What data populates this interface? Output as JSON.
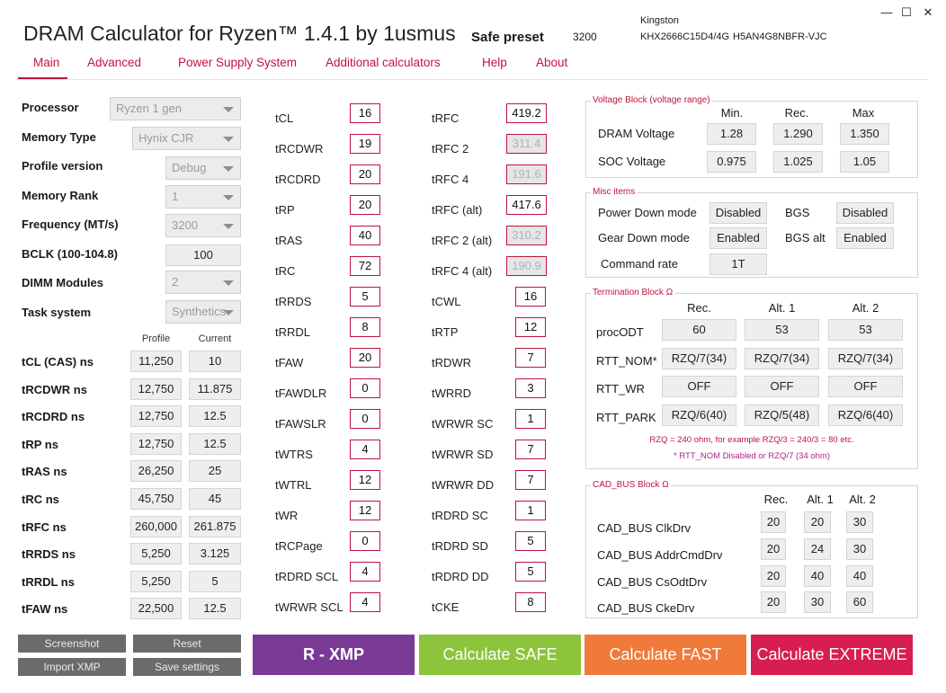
{
  "app": {
    "title": "DRAM Calculator for Ryzen™ 1.4.1 by 1usmus",
    "preset_label": "Safe preset",
    "preset_value": "3200",
    "vendor": "Kingston",
    "part_number": "KHX2666C15D4/4G",
    "part_number_2": "H5AN4G8NBFR-VJC",
    "window_controls": {
      "minimize": "—",
      "maximize": "☐",
      "close": "✕"
    }
  },
  "tabs": [
    "Main",
    "Advanced",
    "Power Supply System",
    "Additional calculators",
    "Help",
    "About"
  ],
  "settings": [
    {
      "label": "Processor",
      "value": "Ryzen 1 gen"
    },
    {
      "label": "Memory Type",
      "value": "Hynix CJR"
    },
    {
      "label": "Profile version",
      "value": "Debug"
    },
    {
      "label": "Memory Rank",
      "value": "1"
    },
    {
      "label": "Frequency (MT/s)",
      "value": "3200"
    },
    {
      "label": "BCLK (100-104.8)",
      "value": "100"
    },
    {
      "label": "DIMM Modules",
      "value": "2"
    },
    {
      "label": "Task system",
      "value": "Synthetics"
    }
  ],
  "ns_table": {
    "headers": [
      "Profile",
      "Current"
    ],
    "rows": [
      {
        "label": "tCL (CAS) ns",
        "profile": "11,250",
        "current": "10"
      },
      {
        "label": "tRCDWR ns",
        "profile": "12,750",
        "current": "11.875"
      },
      {
        "label": "tRCDRD ns",
        "profile": "12,750",
        "current": "12.5"
      },
      {
        "label": "tRP ns",
        "profile": "12,750",
        "current": "12.5"
      },
      {
        "label": "tRAS ns",
        "profile": "26,250",
        "current": "25"
      },
      {
        "label": "tRC ns",
        "profile": "45,750",
        "current": "45"
      },
      {
        "label": "tRFC ns",
        "profile": "260,000",
        "current": "261.875"
      },
      {
        "label": "tRRDS ns",
        "profile": "5,250",
        "current": "3.125"
      },
      {
        "label": "tRRDL ns",
        "profile": "5,250",
        "current": "5"
      },
      {
        "label": "tFAW ns",
        "profile": "22,500",
        "current": "12.5"
      }
    ]
  },
  "timings_col1": [
    {
      "label": "tCL",
      "value": "16"
    },
    {
      "label": "tRCDWR",
      "value": "19"
    },
    {
      "label": "tRCDRD",
      "value": "20"
    },
    {
      "label": "tRP",
      "value": "20"
    },
    {
      "label": "tRAS",
      "value": "40"
    },
    {
      "label": "tRC",
      "value": "72"
    },
    {
      "label": "tRRDS",
      "value": "5"
    },
    {
      "label": "tRRDL",
      "value": "8"
    },
    {
      "label": "tFAW",
      "value": "20"
    },
    {
      "label": "tFAWDLR",
      "value": "0"
    },
    {
      "label": "tFAWSLR",
      "value": "0"
    },
    {
      "label": "tWTRS",
      "value": "4"
    },
    {
      "label": "tWTRL",
      "value": "12"
    },
    {
      "label": "tWR",
      "value": "12"
    },
    {
      "label": "tRCPage",
      "value": "0"
    },
    {
      "label": "tRDRD SCL",
      "value": "4"
    },
    {
      "label": "tWRWR SCL",
      "value": "4"
    }
  ],
  "timings_col2": [
    {
      "label": "tRFC",
      "value": "419.2",
      "disabled": false
    },
    {
      "label": "tRFC 2",
      "value": "311.4",
      "disabled": true
    },
    {
      "label": "tRFC 4",
      "value": "191.6",
      "disabled": true
    },
    {
      "label": "tRFC (alt)",
      "value": "417.6",
      "disabled": false
    },
    {
      "label": "tRFC 2 (alt)",
      "value": "310.2",
      "disabled": true
    },
    {
      "label": "tRFC 4 (alt)",
      "value": "190.9",
      "disabled": true
    },
    {
      "label": "tCWL",
      "value": "16",
      "disabled": false
    },
    {
      "label": "tRTP",
      "value": "12",
      "disabled": false
    },
    {
      "label": "tRDWR",
      "value": "7",
      "disabled": false
    },
    {
      "label": "tWRRD",
      "value": "3",
      "disabled": false
    },
    {
      "label": "tWRWR SC",
      "value": "1",
      "disabled": false
    },
    {
      "label": "tWRWR SD",
      "value": "7",
      "disabled": false
    },
    {
      "label": "tWRWR DD",
      "value": "7",
      "disabled": false
    },
    {
      "label": "tRDRD SC",
      "value": "1",
      "disabled": false
    },
    {
      "label": "tRDRD SD",
      "value": "5",
      "disabled": false
    },
    {
      "label": "tRDRD DD",
      "value": "5",
      "disabled": false
    },
    {
      "label": "tCKE",
      "value": "8",
      "disabled": false
    }
  ],
  "voltage": {
    "legend": "Voltage Block (voltage range)",
    "headers": [
      "Min.",
      "Rec.",
      "Max"
    ],
    "rows": [
      {
        "label": "DRAM Voltage",
        "values": [
          "1.28",
          "1.290",
          "1.350"
        ]
      },
      {
        "label": "SOC Voltage",
        "values": [
          "0.975",
          "1.025",
          "1.05"
        ]
      }
    ]
  },
  "misc": {
    "legend": "Misc items",
    "power_down_label": "Power Down mode",
    "power_down_value": "Disabled",
    "bgs_label": "BGS",
    "bgs_value": "Disabled",
    "gear_down_label": "Gear Down mode",
    "gear_down_value": "Enabled",
    "bgs_alt_label": "BGS alt",
    "bgs_alt_value": "Enabled",
    "command_rate_label": "Command rate",
    "command_rate_value": "1T"
  },
  "termination": {
    "legend": "Termination Block Ω",
    "headers": [
      "Rec.",
      "Alt. 1",
      "Alt. 2"
    ],
    "rows": [
      {
        "label": "procODT",
        "values": [
          "60",
          "53",
          "53"
        ]
      },
      {
        "label": "RTT_NOM*",
        "values": [
          "RZQ/7(34)",
          "RZQ/7(34)",
          "RZQ/7(34)"
        ]
      },
      {
        "label": "RTT_WR",
        "values": [
          "OFF",
          "OFF",
          "OFF"
        ]
      },
      {
        "label": "RTT_PARK",
        "values": [
          "RZQ/6(40)",
          "RZQ/5(48)",
          "RZQ/6(40)"
        ]
      }
    ],
    "note1": "RZQ = 240 ohm, for example RZQ/3 = 240/3 = 80 etc.",
    "note2": "* RTT_NOM Disabled or RZQ/7 (34 ohm)"
  },
  "cadbus": {
    "legend": "CAD_BUS Block Ω",
    "headers": [
      "Rec.",
      "Alt. 1",
      "Alt. 2"
    ],
    "rows": [
      {
        "label": "CAD_BUS ClkDrv",
        "values": [
          "20",
          "20",
          "30"
        ]
      },
      {
        "label": "CAD_BUS AddrCmdDrv",
        "values": [
          "20",
          "24",
          "30"
        ]
      },
      {
        "label": "CAD_BUS CsOdtDrv",
        "values": [
          "20",
          "40",
          "40"
        ]
      },
      {
        "label": "CAD_BUS CkeDrv",
        "values": [
          "20",
          "30",
          "60"
        ]
      }
    ]
  },
  "buttons": {
    "screenshot": "Screenshot",
    "reset": "Reset",
    "import_xmp": "Import XMP",
    "save_settings": "Save settings",
    "rxmp": "R - XMP",
    "safe": "Calculate SAFE",
    "fast": "Calculate FAST",
    "extreme": "Calculate EXTREME"
  },
  "colors": {
    "accent": "#c0143c",
    "rxmp": "#7b3a96",
    "safe": "#8cc43c",
    "fast": "#f07a3a",
    "extreme": "#d81e50"
  }
}
